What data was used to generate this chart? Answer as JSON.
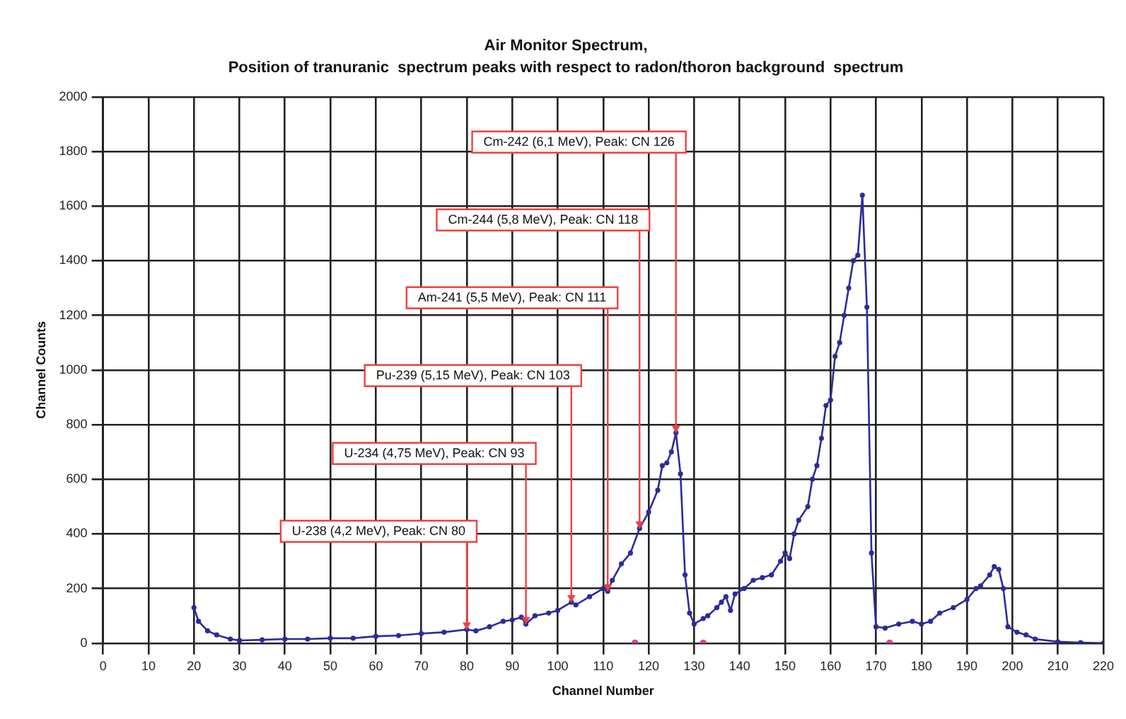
{
  "chart_data": {
    "type": "line",
    "title": "Air Monitor Spectrum,",
    "subtitle": "Position of tranuranic  spectrum peaks with respect to radon/thoron background  spectrum",
    "xlabel": "Channel Number",
    "ylabel": "Channel Counts",
    "xlim": [
      0,
      220
    ],
    "xticks": [
      0,
      10,
      20,
      30,
      40,
      50,
      60,
      70,
      80,
      90,
      100,
      110,
      120,
      130,
      140,
      150,
      160,
      170,
      180,
      190,
      200,
      210,
      220
    ],
    "ylim": [
      0,
      2000
    ],
    "yticks": [
      0,
      200,
      400,
      600,
      800,
      1000,
      1200,
      1400,
      1600,
      1800,
      2000
    ],
    "grid": true,
    "marker": "circle",
    "series": [
      {
        "color": "#2b2b9c",
        "x": [
          20,
          21,
          23,
          25,
          28,
          30,
          35,
          40,
          45,
          50,
          55,
          60,
          65,
          70,
          75,
          80,
          82,
          85,
          88,
          90,
          92,
          93,
          95,
          98,
          100,
          103,
          104,
          107,
          110,
          111,
          112,
          114,
          116,
          118,
          120,
          122,
          123,
          124,
          125,
          126,
          127,
          128,
          129,
          130,
          132,
          133,
          135,
          136,
          137,
          138,
          139,
          141,
          143,
          145,
          147,
          149,
          150,
          151,
          152,
          153,
          155,
          156,
          157,
          158,
          159,
          160,
          161,
          162,
          163,
          164,
          165,
          166,
          167,
          168,
          169,
          170,
          172,
          175,
          178,
          180,
          182,
          184,
          187,
          190,
          192,
          193,
          195,
          196,
          197,
          198,
          199,
          201,
          203,
          205,
          210,
          215,
          220
        ],
        "values": [
          130,
          80,
          45,
          30,
          15,
          10,
          12,
          15,
          15,
          18,
          18,
          25,
          28,
          35,
          40,
          50,
          45,
          60,
          80,
          85,
          95,
          70,
          100,
          110,
          120,
          150,
          140,
          170,
          200,
          190,
          230,
          290,
          330,
          420,
          480,
          560,
          650,
          660,
          700,
          770,
          620,
          250,
          110,
          70,
          90,
          100,
          130,
          150,
          170,
          120,
          180,
          200,
          230,
          240,
          250,
          300,
          330,
          310,
          400,
          450,
          500,
          600,
          650,
          750,
          870,
          890,
          1050,
          1100,
          1200,
          1300,
          1400,
          1420,
          1640,
          1230,
          330,
          60,
          55,
          70,
          80,
          70,
          80,
          110,
          130,
          160,
          200,
          210,
          250,
          280,
          270,
          200,
          60,
          40,
          30,
          15,
          5,
          2,
          0
        ]
      },
      {
        "type": "scatter",
        "color": "#e0409a",
        "x": [
          117,
          132,
          173
        ],
        "values": [
          0,
          0,
          0
        ]
      }
    ],
    "annotations": [
      {
        "text": "U-238 (4,2 MeV), Peak: CN 80",
        "x": 80,
        "y": 50
      },
      {
        "text": "U-234 (4,75 MeV), Peak: CN 93",
        "x": 93,
        "y": 70
      },
      {
        "text": "Pu-239 (5,15 MeV), Peak: CN 103",
        "x": 103,
        "y": 150
      },
      {
        "text": "Am-241 (5,5 MeV), Peak: CN 111",
        "x": 111,
        "y": 190
      },
      {
        "text": "Cm-244 (5,8 MeV), Peak: CN 118",
        "x": 118,
        "y": 420
      },
      {
        "text": "Cm-242 (6,1 MeV), Peak: CN 126",
        "x": 126,
        "y": 770
      }
    ]
  }
}
